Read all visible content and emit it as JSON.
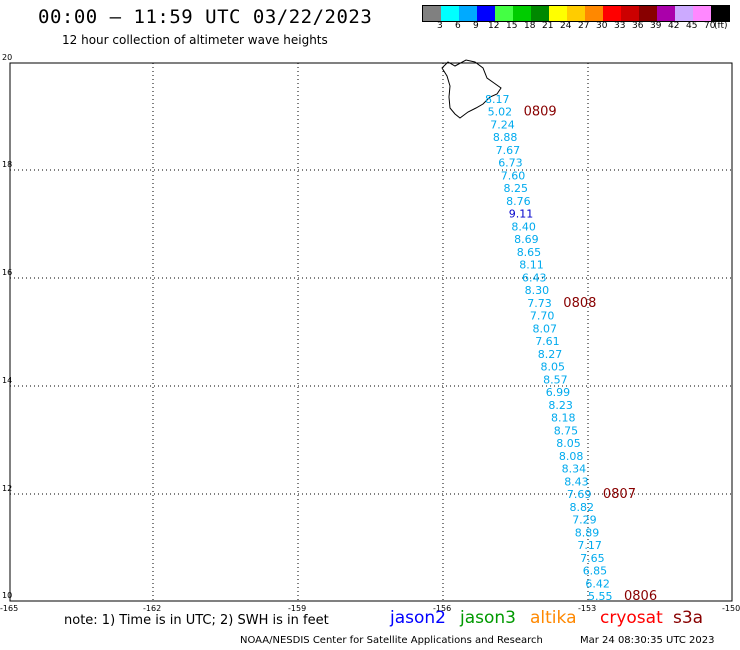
{
  "header": {
    "title": "00:00 – 11:59 UTC 03/22/2023",
    "subtitle": "12 hour collection of altimeter wave heights"
  },
  "legend": {
    "colors": [
      "#808080",
      "#00ffff",
      "#00aaff",
      "#0000ff",
      "#44ff44",
      "#00cc00",
      "#008800",
      "#ffff00",
      "#ffcc00",
      "#ff8800",
      "#ff0000",
      "#cc0000",
      "#880000",
      "#aa00aa",
      "#ccaaff",
      "#ff88ff",
      "#000000"
    ],
    "labels": [
      "3",
      "6",
      "9",
      "12",
      "15",
      "18",
      "21",
      "24",
      "27",
      "30",
      "33",
      "36",
      "39",
      "42",
      "45",
      "70"
    ],
    "unit": "(ft)"
  },
  "axes": {
    "lat_labels": [
      "20",
      "18",
      "16",
      "14",
      "12",
      "10"
    ],
    "lon_labels": [
      "-165",
      "-162",
      "-159",
      "-156",
      "-153",
      "-150"
    ]
  },
  "track": {
    "color": "#00aaee",
    "highlight_color": "#0000cc",
    "values": [
      "8.17",
      "5.02",
      "7.24",
      "8.88",
      "7.67",
      "6.73",
      "7.60",
      "8.25",
      "8.76",
      "9.11",
      "8.40",
      "8.69",
      "8.65",
      "8.11",
      "6.43",
      "8.30",
      "7.73",
      "7.70",
      "8.07",
      "7.61",
      "8.27",
      "8.05",
      "8.57",
      "6.99",
      "8.23",
      "8.18",
      "8.75",
      "8.05",
      "8.08",
      "8.34",
      "8.43",
      "7.69",
      "8.82",
      "7.29",
      "8.89",
      "7.17",
      "7.65",
      "6.85",
      "6.42",
      "5.55"
    ],
    "time_labels": [
      {
        "text": "0809",
        "index": 1
      },
      {
        "text": "0808",
        "index": 16
      },
      {
        "text": "0807",
        "index": 31
      },
      {
        "text": "0806",
        "index": 39
      }
    ],
    "time_color": "#880000"
  },
  "footer": {
    "note": "note:  1) Time is in UTC;  2) SWH is in feet",
    "satellites": [
      {
        "name": "jason2",
        "color": "#0000ff"
      },
      {
        "name": "jason3",
        "color": "#009900"
      },
      {
        "name": "altika",
        "color": "#ff8800"
      },
      {
        "name": "cryosat",
        "color": "#ff0000"
      },
      {
        "name": "s3a",
        "color": "#880000"
      }
    ],
    "credit": "NOAA/NESDIS Center for Satellite Applications and Research",
    "timestamp": "Mar 24 08:30:35 UTC 2023"
  }
}
